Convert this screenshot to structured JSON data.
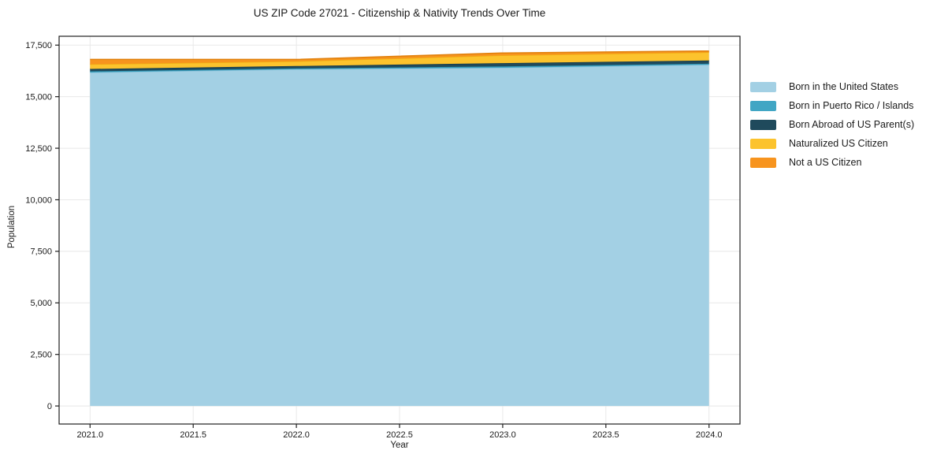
{
  "title": "US ZIP Code 27021 - Citizenship & Nativity Trends Over Time",
  "chart_data": {
    "type": "area",
    "stacked": true,
    "title": "US ZIP Code 27021 - Citizenship & Nativity Trends Over Time",
    "xlabel": "Year",
    "ylabel": "Population",
    "x": [
      2021,
      2022,
      2023,
      2024
    ],
    "series": [
      {
        "name": "Born in the United States",
        "color": "#a3d0e4",
        "edge": "#8cc2da",
        "values": [
          16170,
          16330,
          16400,
          16550
        ]
      },
      {
        "name": "Born in Puerto Rico / Islands",
        "color": "#41a6c4",
        "edge": "#2e94b3",
        "values": [
          60,
          40,
          70,
          50
        ]
      },
      {
        "name": "Born Abroad of US Parent(s)",
        "color": "#1f4a5c",
        "edge": "#16394a",
        "values": [
          115,
          115,
          155,
          155
        ]
      },
      {
        "name": "Naturalized US Citizen",
        "color": "#fcc32d",
        "edge": "#f0ad12",
        "values": [
          230,
          230,
          380,
          400
        ]
      },
      {
        "name": "Not a US Citizen",
        "color": "#f7941e",
        "edge": "#e07f0a",
        "values": [
          230,
          90,
          115,
          60
        ]
      }
    ],
    "xticks": {
      "values": [
        2021.0,
        2021.5,
        2022.0,
        2022.5,
        2023.0,
        2023.5,
        2024.0
      ],
      "labels": [
        "2021.0",
        "2021.5",
        "2022.0",
        "2022.5",
        "2023.0",
        "2023.5",
        "2024.0"
      ]
    },
    "yticks": {
      "values": [
        0,
        2500,
        5000,
        7500,
        10000,
        12500,
        15000,
        17500
      ],
      "labels": [
        "0",
        "2,500",
        "5,000",
        "7,500",
        "10,000",
        "12,500",
        "15,000",
        "17,500"
      ]
    },
    "xlim": [
      2020.85,
      2024.15
    ],
    "ylim": [
      -875,
      17930
    ],
    "grid": true,
    "legend_position": "right outside"
  },
  "colors": {
    "background": "#ffffff",
    "grid": "#e8e8e8",
    "spine": "#1f1f1f",
    "text": "#1a1a1a"
  }
}
